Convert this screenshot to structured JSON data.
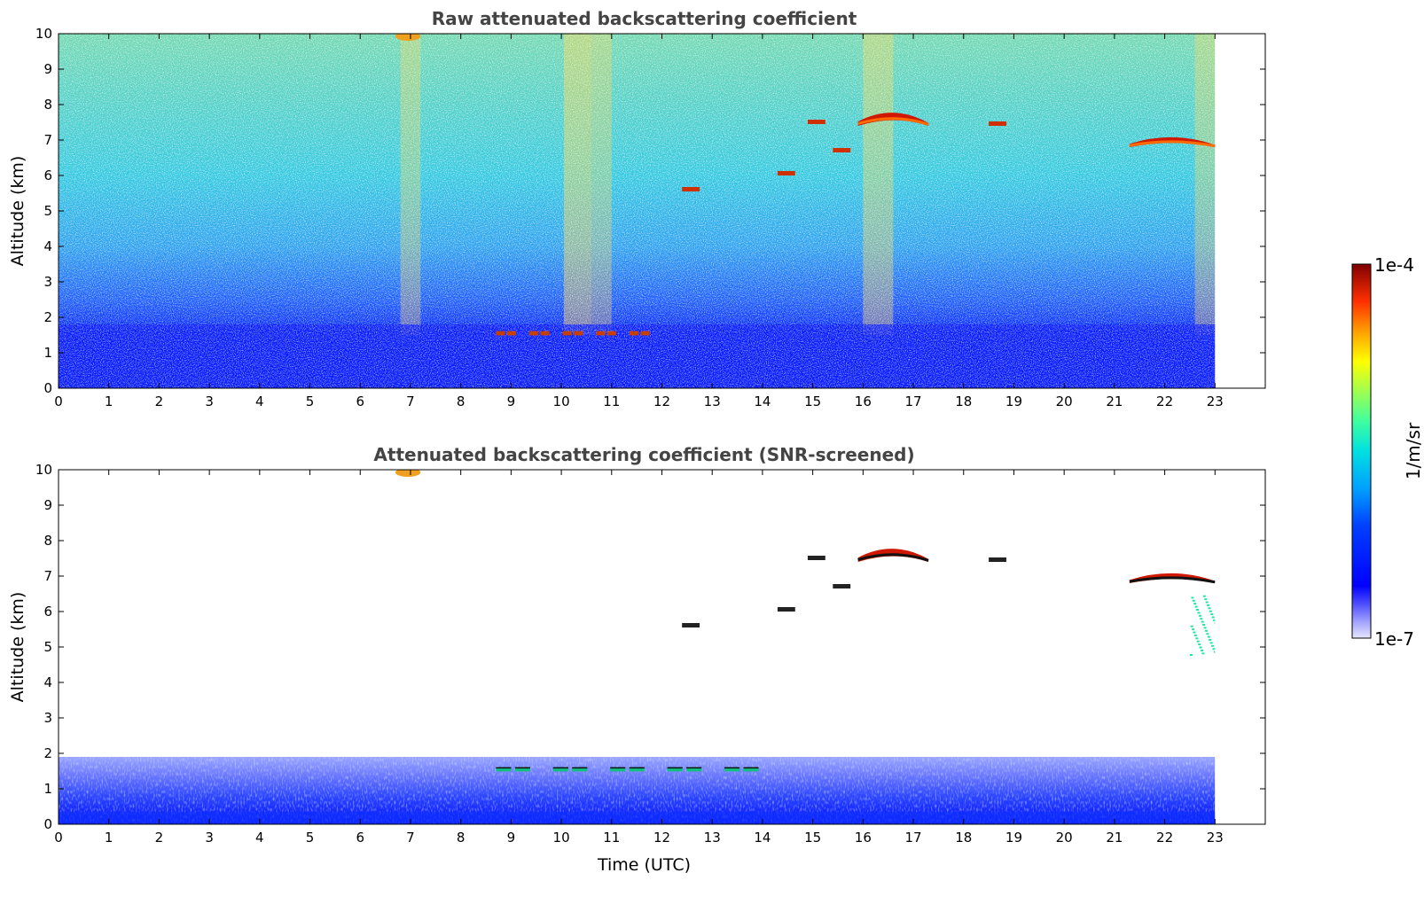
{
  "chart_data": [
    {
      "type": "heatmap",
      "title": "Raw attenuated backscattering coefficient",
      "xlabel": "",
      "ylabel": "Altitude (km)",
      "xlim": [
        0,
        24
      ],
      "ylim": [
        0,
        10
      ],
      "x_ticks": [
        0,
        1,
        2,
        3,
        4,
        5,
        6,
        7,
        8,
        9,
        10,
        11,
        12,
        13,
        14,
        15,
        16,
        17,
        18,
        19,
        20,
        21,
        22,
        23
      ],
      "y_ticks": [
        0,
        1,
        2,
        3,
        4,
        5,
        6,
        7,
        8,
        9,
        10
      ],
      "data_extent_x": [
        0,
        23
      ],
      "features": [
        {
          "label": "noisy background",
          "t_range": [
            0,
            23
          ],
          "alt_range": [
            2,
            10
          ],
          "level": "mid"
        },
        {
          "label": "boundary layer",
          "t_range": [
            0,
            23
          ],
          "alt_range": [
            0,
            2
          ],
          "level": "low"
        },
        {
          "label": "cirrus",
          "t_range": [
            15.9,
            17.3
          ],
          "alt_range": [
            7.4,
            7.8
          ],
          "level": "high"
        },
        {
          "label": "cirrus",
          "t_range": [
            21.3,
            23
          ],
          "alt_range": [
            6.8,
            7.1
          ],
          "level": "high"
        },
        {
          "label": "thin layer",
          "t_range": [
            8.7,
            11.8
          ],
          "alt_range": [
            1.4,
            1.7
          ],
          "level": "high"
        },
        {
          "label": "top cloud",
          "t_range": [
            6.7,
            7.2
          ],
          "alt_range": [
            9.8,
            10
          ],
          "level": "high"
        }
      ]
    },
    {
      "type": "heatmap",
      "title": "Attenuated backscattering coefficient (SNR-screened)",
      "xlabel": "Time (UTC)",
      "ylabel": "Altitude (km)",
      "xlim": [
        0,
        24
      ],
      "ylim": [
        0,
        10
      ],
      "x_ticks": [
        0,
        1,
        2,
        3,
        4,
        5,
        6,
        7,
        8,
        9,
        10,
        11,
        12,
        13,
        14,
        15,
        16,
        17,
        18,
        19,
        20,
        21,
        22,
        23
      ],
      "y_ticks": [
        0,
        1,
        2,
        3,
        4,
        5,
        6,
        7,
        8,
        9,
        10
      ],
      "data_extent_x": [
        0,
        23
      ],
      "features": [
        {
          "label": "boundary layer",
          "t_range": [
            0,
            23
          ],
          "alt_range": [
            0,
            1.9
          ],
          "level": "low"
        },
        {
          "label": "cirrus",
          "t_range": [
            15.9,
            17.3
          ],
          "alt_range": [
            7.4,
            7.8
          ],
          "level": "high"
        },
        {
          "label": "cirrus",
          "t_range": [
            21.3,
            23
          ],
          "alt_range": [
            6.8,
            7.1
          ],
          "level": "high"
        },
        {
          "label": "virga",
          "t_range": [
            22.5,
            23
          ],
          "alt_range": [
            4.8,
            6.5
          ],
          "level": "mid"
        },
        {
          "label": "thin layer",
          "t_range": [
            8.7,
            14
          ],
          "alt_range": [
            1.4,
            1.7
          ],
          "level": "mid"
        },
        {
          "label": "top cloud",
          "t_range": [
            6.7,
            7.2
          ],
          "alt_range": [
            9.8,
            10
          ],
          "level": "high"
        }
      ]
    }
  ],
  "colorbar": {
    "min_label": "1e-7",
    "max_label": "1e-4",
    "units": "1/m/sr",
    "scale": "log",
    "colormap": "jet"
  }
}
